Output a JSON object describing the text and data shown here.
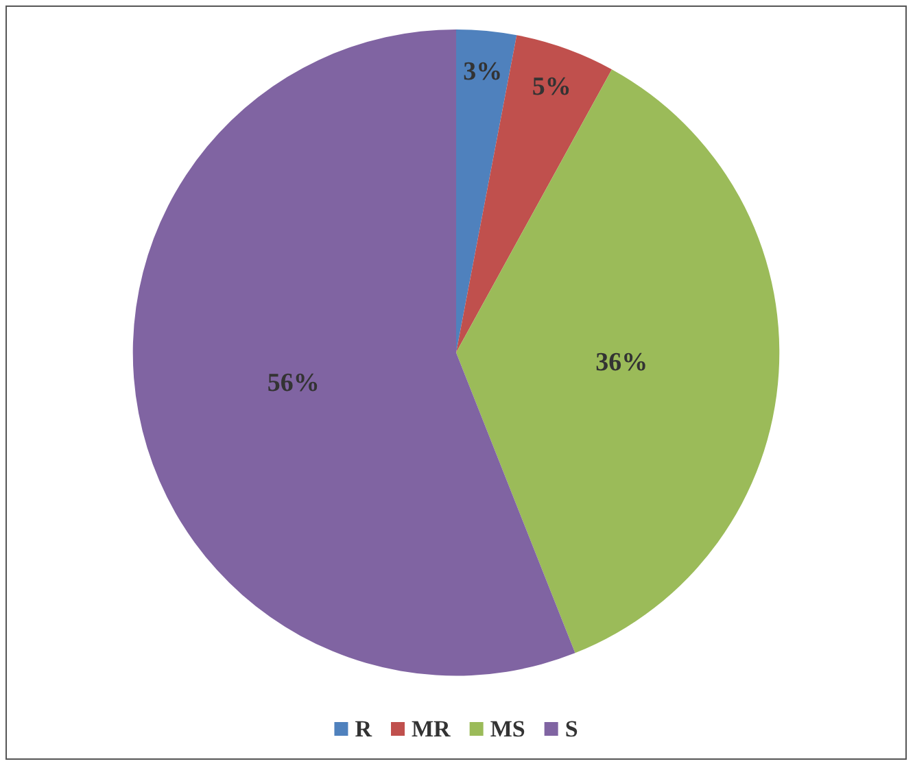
{
  "chart_data": {
    "type": "pie",
    "categories": [
      "R",
      "MR",
      "MS",
      "S"
    ],
    "values": [
      3,
      5,
      36,
      56
    ],
    "value_labels": [
      "3%",
      "5%",
      "36%",
      "56%"
    ],
    "colors": [
      "#4f81bd",
      "#c0504d",
      "#9bbb59",
      "#8064a2"
    ],
    "legend": "bottom"
  }
}
